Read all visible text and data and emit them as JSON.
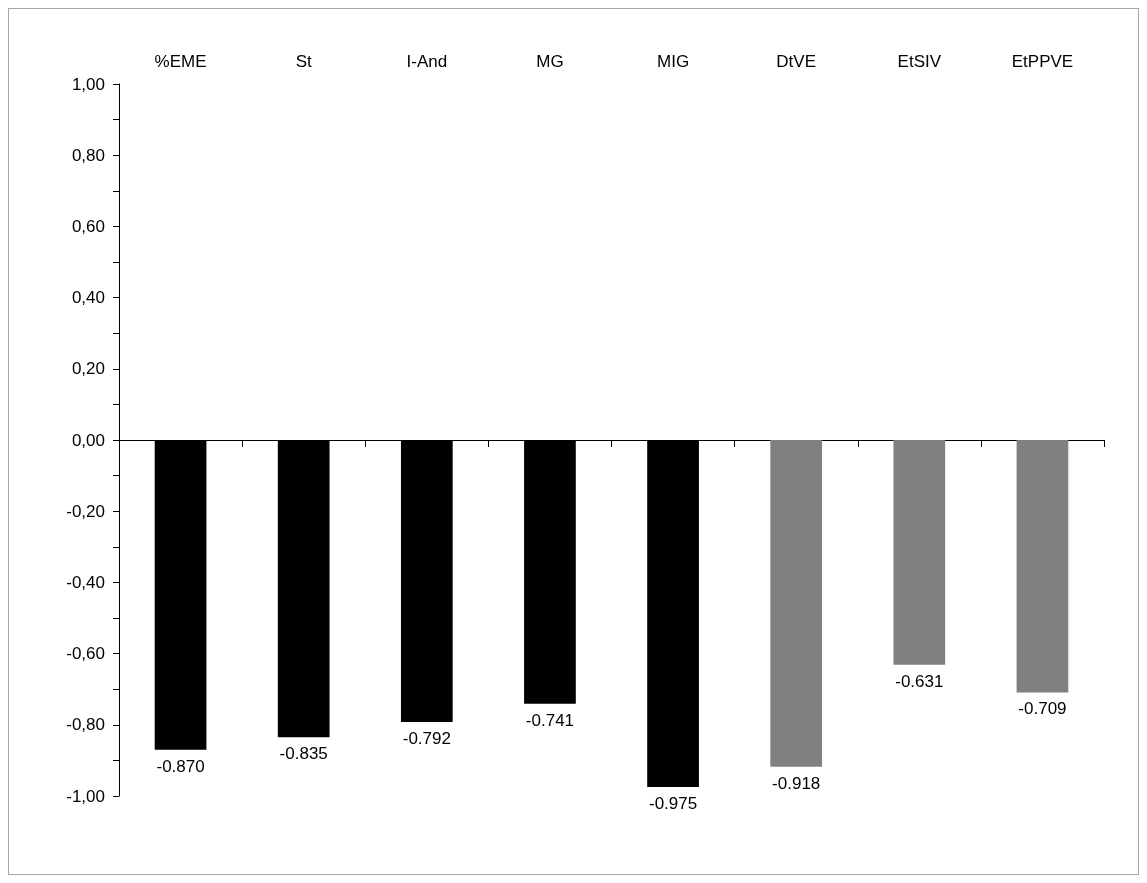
{
  "chart_data": {
    "type": "bar",
    "categories": [
      "%EME",
      "St",
      "I-And",
      "MG",
      "MIG",
      "DtVE",
      "EtSIV",
      "EtPPVE"
    ],
    "values": [
      -0.87,
      -0.835,
      -0.792,
      -0.741,
      -0.975,
      -0.918,
      -0.631,
      -0.709
    ],
    "colors": [
      "#000000",
      "#000000",
      "#000000",
      "#000000",
      "#000000",
      "#808080",
      "#808080",
      "#808080"
    ],
    "value_labels": [
      "-0.870",
      "-0.835",
      "-0.792",
      "-0.741",
      "-0.975",
      "-0.918",
      "-0.631",
      "-0.709"
    ],
    "ylim": [
      -1,
      1
    ],
    "yticks": [
      {
        "value": -1,
        "label": "-1,00"
      },
      {
        "value": -0.9,
        "label": null
      },
      {
        "value": -0.8,
        "label": "-0,80"
      },
      {
        "value": -0.7,
        "label": null
      },
      {
        "value": -0.6,
        "label": "-0,60"
      },
      {
        "value": -0.5,
        "label": null
      },
      {
        "value": -0.4,
        "label": "-0,40"
      },
      {
        "value": -0.3,
        "label": null
      },
      {
        "value": -0.2,
        "label": "-0,20"
      },
      {
        "value": -0.1,
        "label": null
      },
      {
        "value": 0,
        "label": "0,00"
      },
      {
        "value": 0.1,
        "label": null
      },
      {
        "value": 0.2,
        "label": "0,20"
      },
      {
        "value": 0.3,
        "label": null
      },
      {
        "value": 0.4,
        "label": "0,40"
      },
      {
        "value": 0.5,
        "label": null
      },
      {
        "value": 0.6,
        "label": "0,60"
      },
      {
        "value": 0.7,
        "label": null
      },
      {
        "value": 0.8,
        "label": "0,80"
      },
      {
        "value": 0.9,
        "label": null
      },
      {
        "value": 1,
        "label": "1,00"
      }
    ]
  }
}
